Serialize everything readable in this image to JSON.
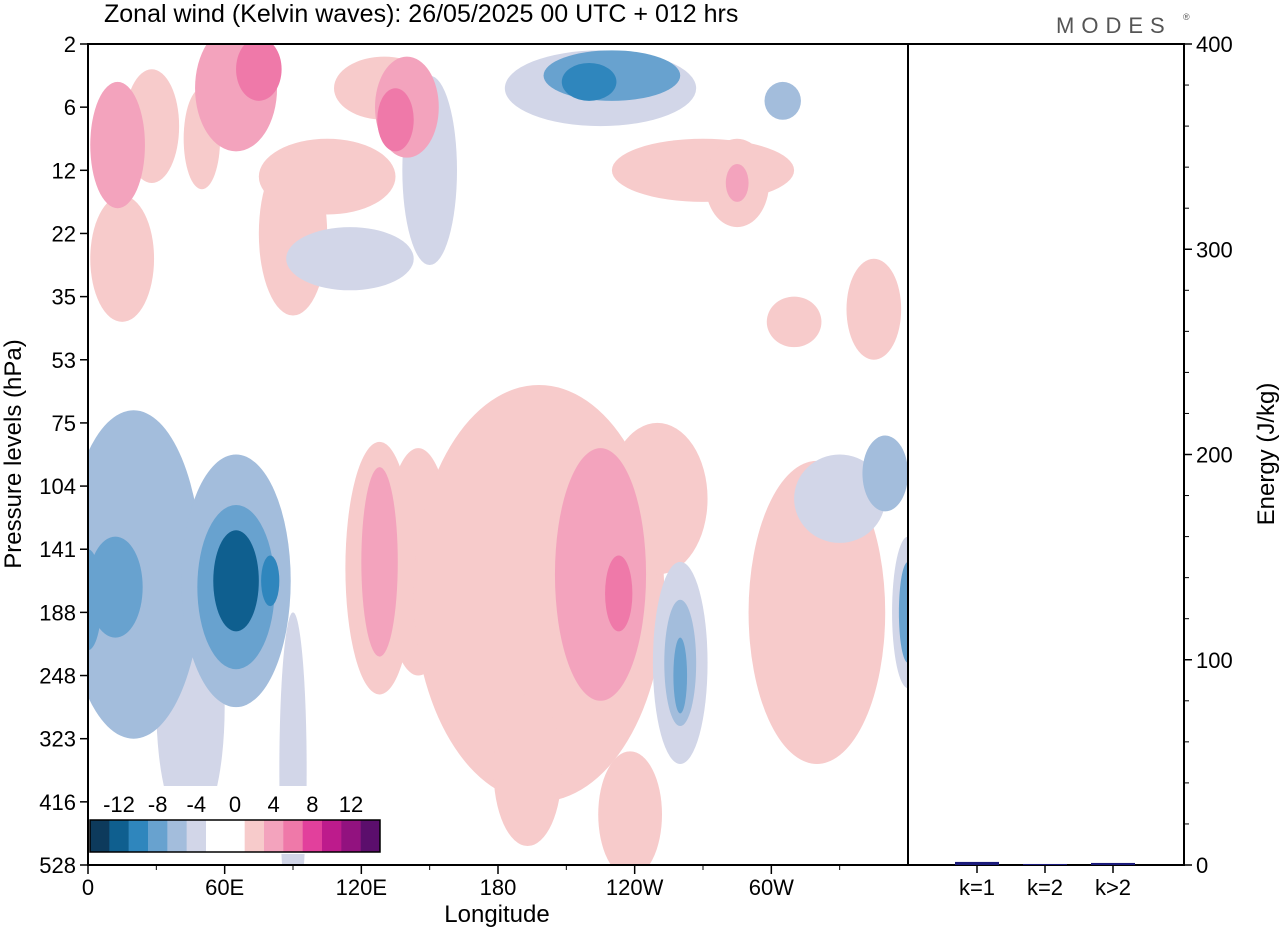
{
  "title": "Zonal wind (Kelvin waves):  26/05/2025  00 UTC  + 012 hrs",
  "brand": "MODES",
  "brand_mark": "®",
  "colors": {
    "neg6": "#0d3a5c",
    "neg5": "#0f5f8f",
    "neg4": "#2f86bd",
    "neg3": "#68a2cf",
    "neg2": "#a3bddc",
    "neg1": "#d2d6e8",
    "zero": "#ffffff",
    "pos1": "#f7cbcb",
    "pos2": "#f3a3bd",
    "pos3": "#ef79a9",
    "pos4": "#e2409c",
    "pos5": "#bd1b8c",
    "pos6": "#92127f",
    "pos7": "#5b0e6c",
    "bar": "#1a1a7a"
  },
  "chart_data": [
    {
      "type": "heatmap",
      "title": "Zonal wind (Kelvin waves):  26/05/2025  00 UTC  + 012 hrs",
      "xlabel": "Longitude",
      "ylabel": "Pressure levels (hPa)",
      "x_ticks": [
        "0",
        "60E",
        "120E",
        "180",
        "120W",
        "60W"
      ],
      "x_tick_lon": [
        0,
        60,
        120,
        180,
        240,
        300
      ],
      "xlim": [
        0,
        360
      ],
      "y_ticks": [
        "2",
        "6",
        "12",
        "22",
        "35",
        "53",
        "75",
        "104",
        "141",
        "188",
        "248",
        "323",
        "416",
        "528"
      ],
      "colorbar": {
        "tick_labels": [
          "-12",
          "-8",
          "-4",
          "0",
          "4",
          "8",
          "12"
        ],
        "tick_values": [
          -12,
          -8,
          -4,
          0,
          4,
          8,
          12
        ],
        "levels": [
          -14,
          -12,
          -10,
          -8,
          -6,
          -4,
          -2,
          0,
          2,
          4,
          6,
          8,
          10,
          12,
          14
        ]
      },
      "features": [
        {
          "lon": 13,
          "level": 1.6,
          "rx": 12,
          "ry": 1.0,
          "value": 5
        },
        {
          "lon": 28,
          "level": 1.3,
          "rx": 12,
          "ry": 0.9,
          "value": 3
        },
        {
          "lon": 65,
          "level": 0.7,
          "rx": 18,
          "ry": 1.0,
          "value": 5
        },
        {
          "lon": 75,
          "level": 0.4,
          "rx": 10,
          "ry": 0.5,
          "value": 7
        },
        {
          "lon": 50,
          "level": 1.5,
          "rx": 8,
          "ry": 0.8,
          "value": 1
        },
        {
          "lon": 130,
          "level": 0.7,
          "rx": 22,
          "ry": 0.5,
          "value": 2
        },
        {
          "lon": 140,
          "level": 1.0,
          "rx": 14,
          "ry": 0.8,
          "value": 5
        },
        {
          "lon": 135,
          "level": 1.2,
          "rx": 8,
          "ry": 0.5,
          "value": 7
        },
        {
          "lon": 105,
          "level": 2.1,
          "rx": 30,
          "ry": 0.6,
          "value": 2
        },
        {
          "lon": 90,
          "level": 3.0,
          "rx": 15,
          "ry": 1.3,
          "value": 2
        },
        {
          "lon": 15,
          "level": 3.4,
          "rx": 14,
          "ry": 1.0,
          "value": 2
        },
        {
          "lon": 150,
          "level": 2.0,
          "rx": 12,
          "ry": 1.5,
          "value": -2
        },
        {
          "lon": 115,
          "level": 3.4,
          "rx": 28,
          "ry": 0.5,
          "value": -2
        },
        {
          "lon": 225,
          "level": 0.7,
          "rx": 42,
          "ry": 0.6,
          "value": -2
        },
        {
          "lon": 230,
          "level": 0.5,
          "rx": 30,
          "ry": 0.4,
          "value": -6
        },
        {
          "lon": 220,
          "level": 0.6,
          "rx": 12,
          "ry": 0.3,
          "value": -8
        },
        {
          "lon": 305,
          "level": 0.9,
          "rx": 8,
          "ry": 0.3,
          "value": -4
        },
        {
          "lon": 270,
          "level": 2.0,
          "rx": 40,
          "ry": 0.5,
          "value": 2
        },
        {
          "lon": 285,
          "level": 2.2,
          "rx": 14,
          "ry": 0.7,
          "value": 2
        },
        {
          "lon": 285,
          "level": 2.2,
          "rx": 5,
          "ry": 0.3,
          "value": 4
        },
        {
          "lon": 345,
          "level": 4.2,
          "rx": 12,
          "ry": 0.8,
          "value": 2
        },
        {
          "lon": 310,
          "level": 4.4,
          "rx": 12,
          "ry": 0.4,
          "value": 2
        },
        {
          "lon": 20,
          "level": 8.4,
          "rx": 30,
          "ry": 2.6,
          "value": -4
        },
        {
          "lon": 12,
          "level": 8.6,
          "rx": 12,
          "ry": 0.8,
          "value": -6
        },
        {
          "lon": 0,
          "level": 8.8,
          "rx": 6,
          "ry": 0.8,
          "value": -6
        },
        {
          "lon": 65,
          "level": 8.5,
          "rx": 24,
          "ry": 2.0,
          "value": -4
        },
        {
          "lon": 65,
          "level": 8.6,
          "rx": 17,
          "ry": 1.3,
          "value": -6
        },
        {
          "lon": 65,
          "level": 8.5,
          "rx": 10,
          "ry": 0.8,
          "value": -10
        },
        {
          "lon": 80,
          "level": 8.5,
          "rx": 4,
          "ry": 0.4,
          "value": -8
        },
        {
          "lon": 45,
          "level": 10.5,
          "rx": 15,
          "ry": 2.0,
          "value": -2
        },
        {
          "lon": 90,
          "level": 11.5,
          "rx": 6,
          "ry": 2.5,
          "value": -2
        },
        {
          "lon": 128,
          "level": 8.3,
          "rx": 15,
          "ry": 2.0,
          "value": 2
        },
        {
          "lon": 128,
          "level": 8.2,
          "rx": 8,
          "ry": 1.5,
          "value": 4
        },
        {
          "lon": 145,
          "level": 8.2,
          "rx": 15,
          "ry": 1.8,
          "value": 2
        },
        {
          "lon": 198,
          "level": 8.7,
          "rx": 55,
          "ry": 3.3,
          "value": 2
        },
        {
          "lon": 225,
          "level": 8.4,
          "rx": 20,
          "ry": 2.0,
          "value": 4
        },
        {
          "lon": 233,
          "level": 8.7,
          "rx": 6,
          "ry": 0.6,
          "value": 6
        },
        {
          "lon": 250,
          "level": 7.2,
          "rx": 22,
          "ry": 1.2,
          "value": 2
        },
        {
          "lon": 193,
          "level": 11.5,
          "rx": 15,
          "ry": 1.2,
          "value": 2
        },
        {
          "lon": 238,
          "level": 12.2,
          "rx": 14,
          "ry": 1.0,
          "value": 2
        },
        {
          "lon": 260,
          "level": 9.8,
          "rx": 12,
          "ry": 1.6,
          "value": -2
        },
        {
          "lon": 260,
          "level": 9.8,
          "rx": 7,
          "ry": 1.0,
          "value": -4
        },
        {
          "lon": 260,
          "level": 10.0,
          "rx": 3,
          "ry": 0.6,
          "value": -6
        },
        {
          "lon": 320,
          "level": 9.0,
          "rx": 30,
          "ry": 2.4,
          "value": 2
        },
        {
          "lon": 330,
          "level": 7.2,
          "rx": 20,
          "ry": 0.7,
          "value": -2
        },
        {
          "lon": 350,
          "level": 6.8,
          "rx": 10,
          "ry": 0.6,
          "value": -4
        },
        {
          "lon": 360,
          "level": 9.0,
          "rx": 7,
          "ry": 1.2,
          "value": -2
        },
        {
          "lon": 360,
          "level": 9.0,
          "rx": 4,
          "ry": 0.8,
          "value": -6
        }
      ]
    },
    {
      "type": "bar",
      "categories": [
        "k=1",
        "k=2",
        "k>2"
      ],
      "values": [
        1.5,
        0.5,
        1.0
      ],
      "ylabel": "Energy (J/kg)",
      "ylim": [
        0,
        400
      ],
      "y_ticks": [
        "0",
        "100",
        "200",
        "300",
        "400"
      ],
      "y_tick_values": [
        0,
        100,
        200,
        300,
        400
      ]
    }
  ]
}
